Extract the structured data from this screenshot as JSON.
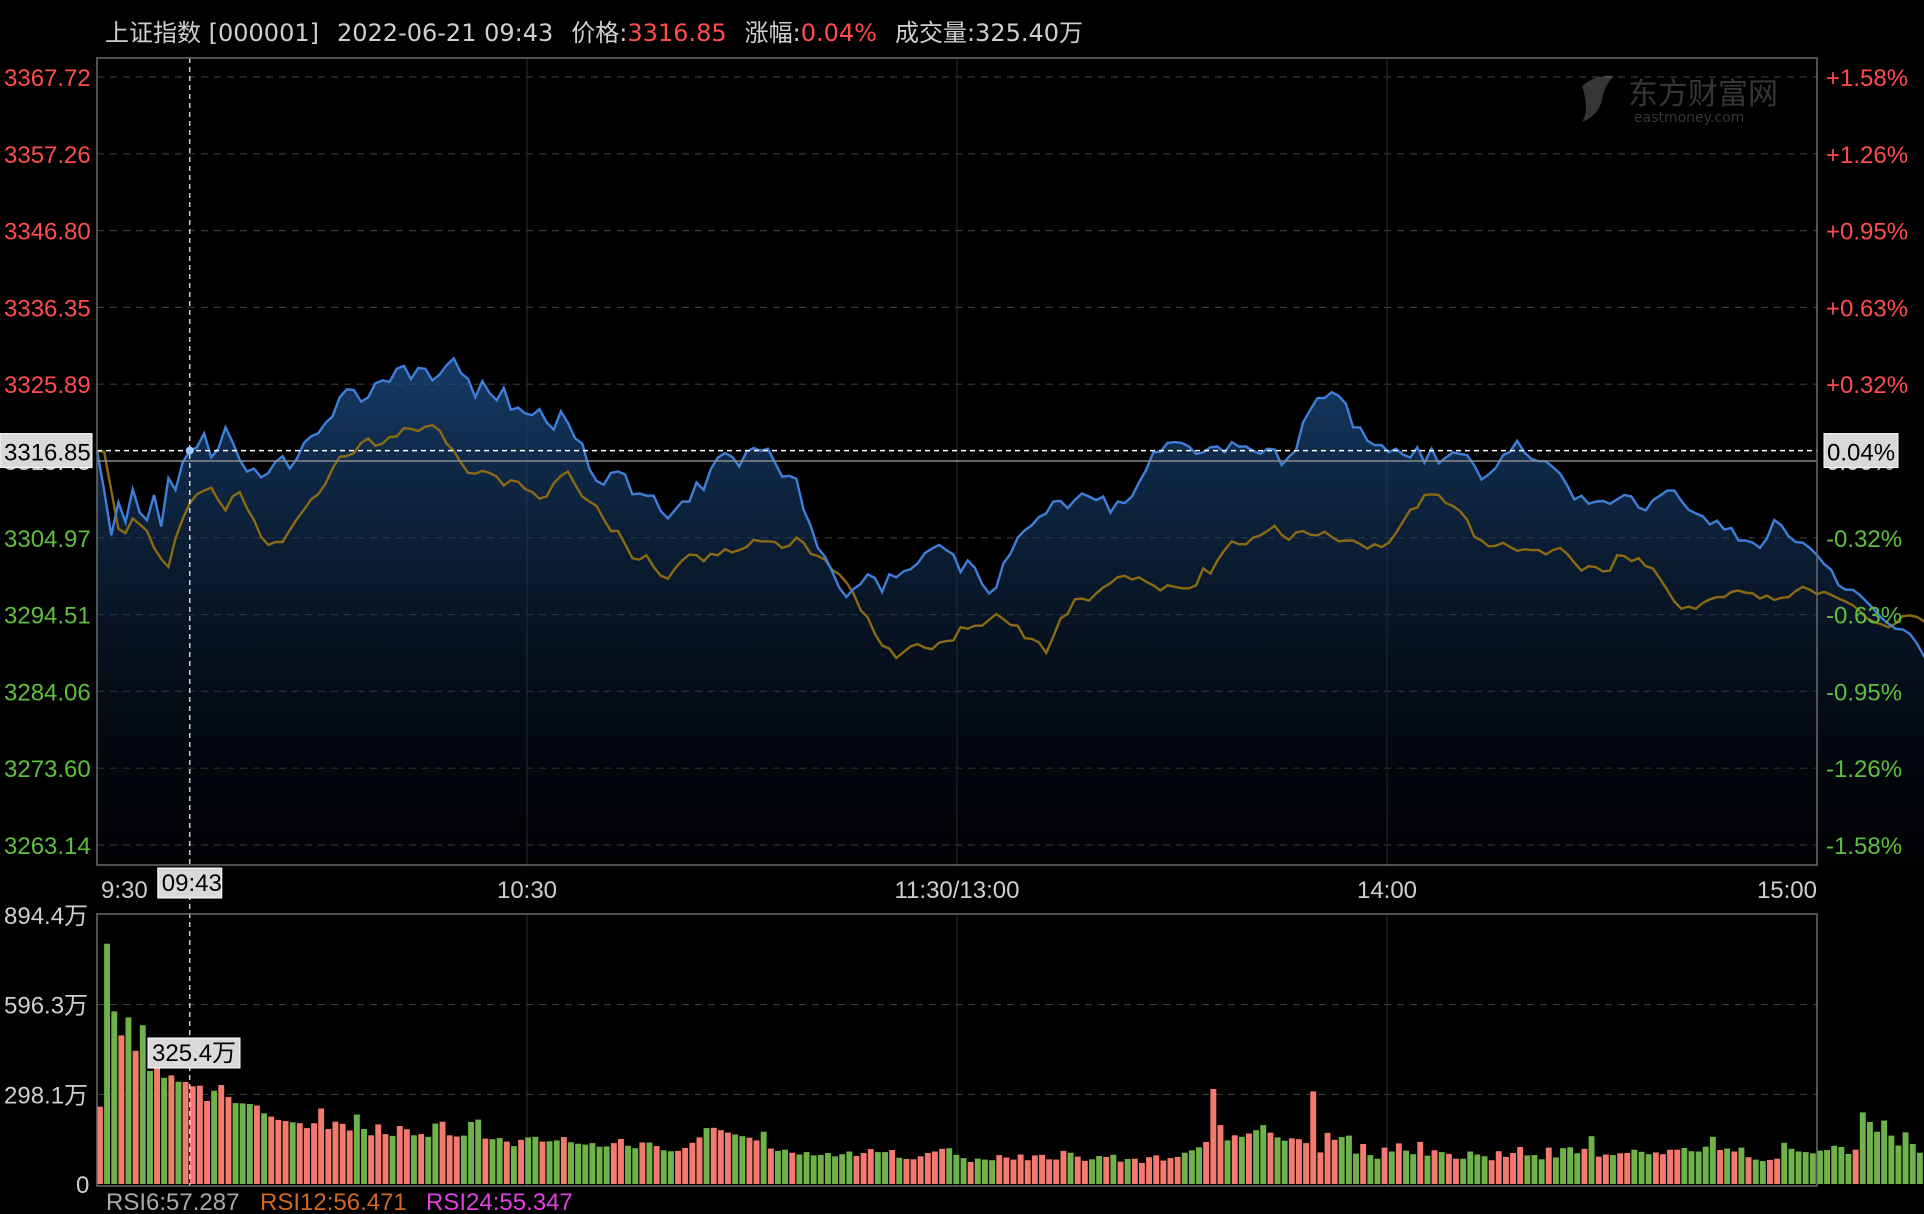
{
  "header": {
    "symbol": "上证指数 [000001]",
    "datetime": "2022-06-21 09:43",
    "price_label": "价格:",
    "price": "3316.85",
    "change_label": "涨幅:",
    "change": "0.04%",
    "volume_label": "成交量:",
    "volume": "325.40万"
  },
  "watermark": {
    "cn": "东方财富网",
    "en": "eastmoney.com"
  },
  "colors": {
    "up": "#ff4c4c",
    "down": "#5fbf3f",
    "price_line": "#3f7fd8",
    "avg_line": "#8a6a12",
    "vol_up": "#f27a6e",
    "vol_down": "#6fb24a",
    "rsi6": "#aaaaaa",
    "rsi12": "#d2691e",
    "rsi24": "#e040e0"
  },
  "chart_data": {
    "type": "line",
    "x_ticks": [
      "9:30",
      "10:30",
      "11:30/13:00",
      "14:00",
      "15:00"
    ],
    "y_left_ticks": [
      "3367.72",
      "3357.26",
      "3346.80",
      "3336.35",
      "3325.89",
      "3304.97",
      "3294.51",
      "3284.06",
      "3273.60",
      "3263.14"
    ],
    "y_right_ticks": [
      "+1.58%",
      "+1.26%",
      "+0.95%",
      "+0.63%",
      "+0.32%",
      "-0.32%",
      "-0.63%",
      "-0.95%",
      "-1.26%",
      "-1.58%"
    ],
    "y_range": [
      3263.14,
      3367.72
    ],
    "prev_close": 3315.43,
    "prev_close_label": "3315.43",
    "prev_close_pct": "0.00%",
    "crosshair": {
      "time_index": 13,
      "time_label": "09:43",
      "price_label": "3316.85",
      "pct_label": "0.04%",
      "volume_label": "325.4万"
    },
    "series": [
      {
        "key": "price",
        "values": [
          3316.8,
          3311.5,
          3305.3,
          3309.8,
          3307.1,
          3311.6,
          3308.4,
          3307.4,
          3310.8,
          3306.5,
          3313.1,
          3311.5,
          3315.2,
          3316.85,
          3317.3,
          3319.2,
          3315.9,
          3317.1,
          3320.0,
          3318.0,
          3315.6,
          3314.0,
          3314.4,
          3313.2,
          3313.8,
          3315.3,
          3316.1,
          3314.4,
          3315.7,
          3317.9,
          3318.8,
          3319.2,
          3320.6,
          3321.5,
          3324.1,
          3325.2,
          3325.1,
          3323.5,
          3324.1,
          3326.0,
          3326.4,
          3326.2,
          3328.0,
          3328.4,
          3326.6,
          3328.1,
          3328.0,
          3326.4,
          3327.2,
          3328.5,
          3329.4,
          3327.4,
          3326.6,
          3324.1,
          3326.3,
          3324.7,
          3323.7,
          3325.4,
          3322.4,
          3322.7,
          3321.9,
          3321.7,
          3322.5,
          3320.7,
          3319.7,
          3322.2,
          3320.6,
          3318.5,
          3317.8,
          3314.3,
          3312.7,
          3312.2,
          3313.8,
          3314.0,
          3313.6,
          3310.9,
          3311.0,
          3310.7,
          3310.7,
          3308.6,
          3307.6,
          3308.8,
          3309.9,
          3309.9,
          3312.5,
          3311.5,
          3314.3,
          3315.9,
          3316.5,
          3316.0,
          3314.7,
          3316.7,
          3317.2,
          3316.8,
          3317.1,
          3315.2,
          3313.3,
          3313.4,
          3313.0,
          3308.8,
          3306.6,
          3303.6,
          3302.4,
          3300.4,
          3298.2,
          3296.9,
          3298.0,
          3298.7,
          3300.0,
          3299.5,
          3297.6,
          3300.0,
          3299.6,
          3300.4,
          3300.7,
          3301.5,
          3302.9,
          3303.5,
          3304.0,
          3303.3,
          3302.7,
          3300.3,
          3301.9,
          3300.9,
          3298.7,
          3297.4,
          3298.2,
          3301.5,
          3302.8,
          3305.0,
          3306.0,
          3306.7,
          3307.8,
          3308.3,
          3309.9,
          3310.0,
          3309.0,
          3310.1,
          3311.0,
          3310.6,
          3310.1,
          3310.6,
          3308.4,
          3309.9,
          3309.7,
          3310.6,
          3312.5,
          3314.2,
          3316.6,
          3316.7,
          3317.9,
          3318.0,
          3317.9,
          3317.4,
          3316.4,
          3316.6,
          3317.3,
          3317.4,
          3316.6,
          3318.0,
          3317.4,
          3317.4,
          3316.8,
          3316.4,
          3317.1,
          3317.0,
          3314.9,
          3316.0,
          3316.9,
          3320.7,
          3322.4,
          3324.0,
          3324.0,
          3324.8,
          3324.3,
          3323.2,
          3320.0,
          3320.0,
          3318.2,
          3317.6,
          3317.6,
          3316.6,
          3317.1,
          3316.3,
          3315.9,
          3317.3,
          3315.2,
          3317.1,
          3315.1,
          3315.9,
          3316.6,
          3316.4,
          3316.2,
          3314.8,
          3312.9,
          3313.6,
          3314.5,
          3316.2,
          3316.7,
          3318.2,
          3316.6,
          3315.7,
          3315.4,
          3315.4,
          3314.6,
          3313.7,
          3312.1,
          3310.2,
          3310.7,
          3309.6,
          3309.9,
          3310.0,
          3309.6,
          3310.2,
          3310.8,
          3310.6,
          3309.1,
          3308.7,
          3310.1,
          3310.7,
          3311.4,
          3311.4,
          3310.0,
          3308.8,
          3308.3,
          3307.9,
          3306.8,
          3307.3,
          3306.1,
          3306.3,
          3304.6,
          3304.6,
          3304.3,
          3303.6,
          3304.9,
          3307.4,
          3306.7,
          3305.2,
          3304.4,
          3304.3,
          3303.6,
          3302.6,
          3301.4,
          3300.6,
          3298.5,
          3297.9,
          3297.9,
          3297.2,
          3296.2,
          3295.2,
          3294.1,
          3293.3,
          3292.6,
          3292.5,
          3291.9,
          3290.6,
          3288.8,
          3289.4,
          3290.3,
          3291.8,
          3291.6,
          3292.1,
          3290.8,
          3288.9,
          3285.8,
          3285.6,
          3285.3,
          3284.1,
          3284.2,
          3284.1,
          3284.9,
          3283.0,
          3280.5,
          3280.3,
          3280.3,
          3281.4,
          3282.5,
          3282.0,
          3282.2,
          3282.3,
          3283.4,
          3283.6,
          3286.5,
          3287.9,
          3288.3,
          3289.6,
          3290.2,
          3290.0,
          3289.4,
          3287.5,
          3286.3,
          3285.4,
          3285.4,
          3286.1,
          3286.1,
          3286.4,
          3287.0,
          3286.2,
          3285.4,
          3290.2,
          3291.1,
          3293.8,
          3295.0,
          3295.8,
          3296.9,
          3296.5,
          3298.1,
          3298.0,
          3299.7,
          3301.3,
          3303.6,
          3303.4,
          3301.9,
          3302.1,
          3303.6,
          3305.0,
          3306.5,
          3306.1,
          3306.1,
          3306.1,
          3307.1,
          3306.0,
          3307.0,
          3306.2,
          3306.8,
          3306.2,
          3305.0,
          3305.6,
          3305.0,
          3303.3,
          3303.8,
          3303.7,
          3304.4,
          3305.3,
          3305.4,
          3306.6,
          3306.5,
          3306.5,
          3306.9,
          3306.6,
          3306.9,
          3307.1,
          3307.2,
          3307.1,
          3306.9,
          3305.9
        ]
      },
      {
        "key": "avg",
        "values": [
          3316.8,
          3316.7,
          3311.4,
          3306.2,
          3305.6,
          3307.6,
          3306.8,
          3305.9,
          3303.6,
          3302.1,
          3301.0,
          3304.9,
          3307.5,
          3309.7,
          3310.9,
          3311.4,
          3311.8,
          3310.1,
          3308.7,
          3310.6,
          3311.2,
          3309.0,
          3307.4,
          3305.1,
          3304.0,
          3304.4,
          3304.4,
          3306.0,
          3307.5,
          3308.8,
          3310.2,
          3310.9,
          3312.3,
          3314.4,
          3316.0,
          3316.1,
          3316.5,
          3317.9,
          3318.5,
          3317.5,
          3317.8,
          3318.7,
          3318.8,
          3319.9,
          3319.8,
          3319.5,
          3320.1,
          3320.3,
          3319.6,
          3317.8,
          3316.8,
          3315.2,
          3313.8,
          3313.7,
          3314.1,
          3313.8,
          3313.3,
          3312.1,
          3312.8,
          3312.6,
          3311.6,
          3311.2,
          3310.3,
          3310.6,
          3312.4,
          3313.4,
          3314.0,
          3312.2,
          3310.6,
          3309.9,
          3309.3,
          3307.5,
          3305.9,
          3305.9,
          3304.1,
          3302.2,
          3302.0,
          3302.6,
          3301.0,
          3299.8,
          3299.4,
          3300.8,
          3301.9,
          3302.7,
          3302.6,
          3301.8,
          3302.8,
          3302.6,
          3303.4,
          3303.0,
          3303.3,
          3303.7,
          3304.7,
          3304.5,
          3304.5,
          3304.4,
          3303.6,
          3303.9,
          3305.0,
          3304.3,
          3302.8,
          3302.5,
          3302.0,
          3300.6,
          3300.0,
          3298.9,
          3297.4,
          3295.1,
          3294.1,
          3291.9,
          3290.3,
          3289.9,
          3288.6,
          3289.4,
          3290.2,
          3290.5,
          3290.0,
          3289.8,
          3290.7,
          3290.9,
          3291.0,
          3292.8,
          3292.6,
          3293.0,
          3293.0,
          3293.8,
          3294.6,
          3293.9,
          3293.1,
          3293.0,
          3291.3,
          3291.2,
          3290.7,
          3289.3,
          3291.5,
          3294.0,
          3294.6,
          3296.6,
          3296.7,
          3296.4,
          3297.4,
          3298.2,
          3298.8,
          3299.6,
          3299.8,
          3299.3,
          3299.6,
          3299.0,
          3298.5,
          3297.8,
          3298.5,
          3298.3,
          3298.1,
          3298.1,
          3298.5,
          3300.8,
          3300.1,
          3301.9,
          3303.3,
          3304.5,
          3304.1,
          3304.1,
          3305.0,
          3305.3,
          3305.9,
          3306.6,
          3305.4,
          3304.7,
          3305.7,
          3305.9,
          3305.4,
          3305.3,
          3305.8,
          3305.1,
          3304.5,
          3304.6,
          3304.6,
          3304.1,
          3303.5,
          3304.1,
          3303.7,
          3304.3,
          3305.6,
          3307.2,
          3308.8,
          3309.1,
          3310.8,
          3310.9,
          3310.8,
          3309.7,
          3309.3,
          3308.6,
          3307.4,
          3305.1,
          3304.6,
          3303.8,
          3303.9,
          3304.3,
          3303.7,
          3303.2,
          3303.4,
          3303.3,
          3303.3,
          3302.7,
          3303.3,
          3303.6,
          3302.8,
          3301.6,
          3300.5,
          3301.1,
          3301.0,
          3300.4,
          3300.5,
          3302.6,
          3302.5,
          3301.8,
          3302.2,
          3301.1,
          3300.8,
          3299.4,
          3297.9,
          3296.3,
          3295.3,
          3295.6,
          3295.3,
          3296.1,
          3296.6,
          3296.9,
          3296.9,
          3297.6,
          3297.8,
          3297.5,
          3297.4,
          3296.7,
          3297.1,
          3296.5,
          3296.8,
          3296.9,
          3297.7,
          3298.3,
          3297.9,
          3297.3,
          3297.6,
          3297.2,
          3296.7,
          3296.3,
          3295.8,
          3295.0,
          3294.0,
          3293.5,
          3293.2,
          3292.8,
          3293.3,
          3294.3,
          3294.4,
          3294.2,
          3293.6,
          3293.9,
          3293.4,
          3292.3,
          3291.1,
          3289.6,
          3289.3,
          3289.3,
          3288.6,
          3287.7,
          3286.7,
          3285.1,
          3283.8,
          3282.9,
          3282.6,
          3281.9,
          3280.6,
          3279.7,
          3279.1,
          3278.7,
          3278.7,
          3278.5,
          3279.2,
          3278.9,
          3278.4,
          3277.5,
          3275.5,
          3274.1,
          3273.5,
          3273.4,
          3273.4,
          3273.4,
          3273.8,
          3273.6,
          3273.0,
          3270.9,
          3269.3,
          3268.6,
          3268.2,
          3267.9,
          3266.6,
          3265.6,
          3266.5,
          3266.4,
          3266.5,
          3266.8,
          3266.6,
          3266.7,
          3267.5,
          3268.5,
          3269.9,
          3271.4,
          3272.7,
          3273.4,
          3274.5,
          3275.1,
          3275.3,
          3274.5,
          3273.6,
          3273.2,
          3272.5,
          3272.1,
          3273.2,
          3273.6,
          3274.1,
          3274.3,
          3274.1,
          3274.2,
          3275.6,
          3276.9,
          3278.7,
          3280.2,
          3281.0,
          3281.3,
          3282.9,
          3283.6,
          3284.5,
          3285.3,
          3285.7,
          3286.0,
          3286.4,
          3287.7,
          3288.9,
          3289.6,
          3290.7,
          3291.0,
          3291.8,
          3292.6,
          3293.3,
          3293.9,
          3294.0,
          3293.5,
          3293.4,
          3293.4,
          3293.9,
          3294.8,
          3295.0,
          3294.8,
          3294.7,
          3295.0,
          3295.2,
          3294.7,
          3294.8,
          3294.8,
          3294.5,
          3293.9,
          3293.8,
          3293.9,
          3294.2,
          3294.5,
          3294.7,
          3295.1,
          3295.2,
          3295.5,
          3295.3,
          3295.2,
          3295.6,
          3295.6,
          3296.1,
          3296.3
        ]
      }
    ],
    "volume": {
      "unit": "万",
      "ticks": [
        "894.4万",
        "596.3万",
        "298.1万",
        "0"
      ],
      "max": 894.4,
      "values": [
        257,
        799,
        574,
        494,
        554,
        443,
        528,
        376,
        439,
        353,
        361,
        340,
        339,
        325,
        327,
        276,
        310,
        329,
        289,
        269,
        268,
        266,
        261,
        235,
        224,
        213,
        209,
        205,
        202,
        186,
        202,
        251,
        183,
        207,
        200,
        178,
        231,
        183,
        162,
        198,
        166,
        160,
        193,
        182,
        162,
        166,
        157,
        201,
        207,
        162,
        158,
        161,
        206,
        214,
        151,
        149,
        153,
        141,
        126,
        147,
        155,
        157,
        141,
        142,
        145,
        156,
        139,
        134,
        131,
        136,
        124,
        125,
        136,
        150,
        127,
        119,
        138,
        138,
        126,
        112,
        109,
        110,
        120,
        137,
        155,
        186,
        187,
        179,
        171,
        165,
        159,
        154,
        145,
        174,
        118,
        110,
        114,
        104,
        98,
        106,
        95,
        97,
        103,
        92,
        99,
        108,
        93,
        103,
        116,
        106,
        106,
        113,
        87,
        83,
        82,
        92,
        103,
        108,
        117,
        119,
        97,
        86,
        73,
        84,
        81,
        79,
        96,
        88,
        81,
        98,
        79,
        95,
        97,
        82,
        81,
        110,
        104,
        91,
        77,
        82,
        93,
        90,
        97,
        74,
        83,
        84,
        70,
        89,
        95,
        78,
        86,
        90,
        104,
        112,
        122,
        140,
        316,
        196,
        145,
        162,
        157,
        168,
        179,
        196,
        171,
        155,
        144,
        152,
        149,
        136,
        308,
        105,
        170,
        147,
        156,
        161,
        101,
        133,
        96,
        84,
        121,
        108,
        135,
        111,
        99,
        140,
        94,
        112,
        106,
        100,
        84,
        84,
        108,
        98,
        92,
        79,
        109,
        90,
        103,
        123,
        95,
        96,
        82,
        121,
        88,
        119,
        122,
        102,
        117,
        159,
        91,
        98,
        96,
        102,
        103,
        114,
        107,
        99,
        105,
        99,
        114,
        114,
        120,
        109,
        108,
        124,
        157,
        113,
        118,
        108,
        121,
        89,
        81,
        76,
        80,
        84,
        137,
        117,
        108,
        106,
        102,
        111,
        113,
        127,
        123,
        100,
        114,
        238,
        206,
        174,
        211,
        161,
        128,
        172,
        133,
        104,
        216,
        220,
        202,
        144,
        167,
        141,
        132,
        98,
        124,
        136,
        145,
        102,
        98,
        108,
        113,
        94,
        101,
        92,
        96,
        94,
        84,
        90,
        98,
        78,
        88,
        105,
        111,
        91,
        109,
        93,
        98,
        145,
        94,
        76,
        88,
        91,
        124,
        97,
        125,
        105,
        95,
        116,
        149,
        141,
        140,
        154,
        162,
        181,
        197,
        205,
        243,
        18,
        14,
        395
      ],
      "crosshair_value": 325.4
    },
    "legend": [
      {
        "key": "rsi6",
        "label": "RSI6:57.287"
      },
      {
        "key": "rsi12",
        "label": "RSI12:56.471"
      },
      {
        "key": "rsi24",
        "label": "RSI24:55.347"
      }
    ]
  }
}
